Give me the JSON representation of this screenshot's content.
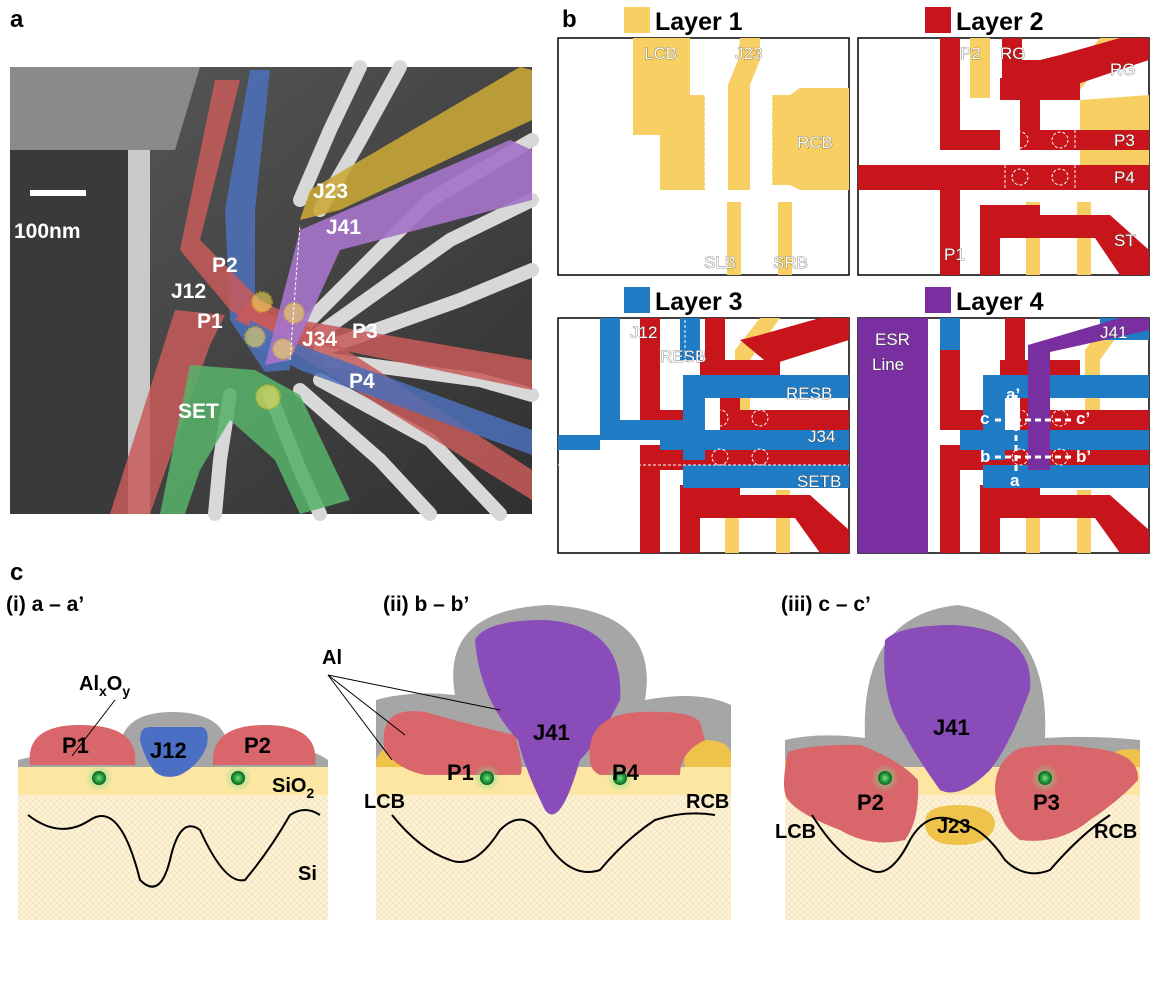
{
  "panels": {
    "a": {
      "letter": "a",
      "scale_bar": "100nm",
      "labels": [
        "J23",
        "J41",
        "P2",
        "J12",
        "P1",
        "J34",
        "P3",
        "P4",
        "SET"
      ]
    },
    "b": {
      "letter": "b",
      "layer1": {
        "title": "Layer 1",
        "color": "#f7cf63",
        "labels": [
          "LCB",
          "J23",
          "RCB",
          "SLB",
          "SRB"
        ]
      },
      "layer2": {
        "title": "Layer 2",
        "color": "#c8141b",
        "labels": [
          "P2",
          "RG",
          "RG",
          "P3",
          "P4",
          "P1",
          "ST"
        ]
      },
      "layer3": {
        "title": "Layer 3",
        "color": "#1f7bc4",
        "labels": [
          "J12",
          "RESB",
          "RESB",
          "J34",
          "SETB"
        ]
      },
      "layer4": {
        "title": "Layer 4",
        "color": "#7a2fa0",
        "labels": [
          "ESR",
          "Line",
          "J41",
          "a’",
          "c",
          "c’",
          "b",
          "b’",
          "a"
        ]
      }
    },
    "c": {
      "letter": "c",
      "sections": [
        {
          "title": "(i) a – a’",
          "labels": [
            "P1",
            "J12",
            "P2"
          ]
        },
        {
          "title": "(ii) b – b’",
          "labels": [
            "J41",
            "P1",
            "P4",
            "LCB",
            "RCB"
          ]
        },
        {
          "title": "(iii) c – c’",
          "labels": [
            "J41",
            "P2",
            "J23",
            "P3",
            "LCB",
            "RCB"
          ]
        }
      ],
      "materials": {
        "oxide_base": "Al",
        "oxide_sub_x": "x",
        "oxide_mid": "O",
        "oxide_sub_y": "y",
        "al": "Al",
        "sio2_base": "SiO",
        "sio2_sub": "2",
        "si": "Si"
      }
    }
  },
  "colors": {
    "gold": "#f7cf63",
    "red": "#c8141b",
    "blue": "#1f7bc4",
    "purple": "#7a2fa0",
    "green": "#2bb24c",
    "xs_red": "#d9666a",
    "xs_blue": "#4a6fc4",
    "xs_purple": "#8a4cb8",
    "xs_gold": "#efc24a",
    "xs_gray": "#a6a6a6"
  }
}
